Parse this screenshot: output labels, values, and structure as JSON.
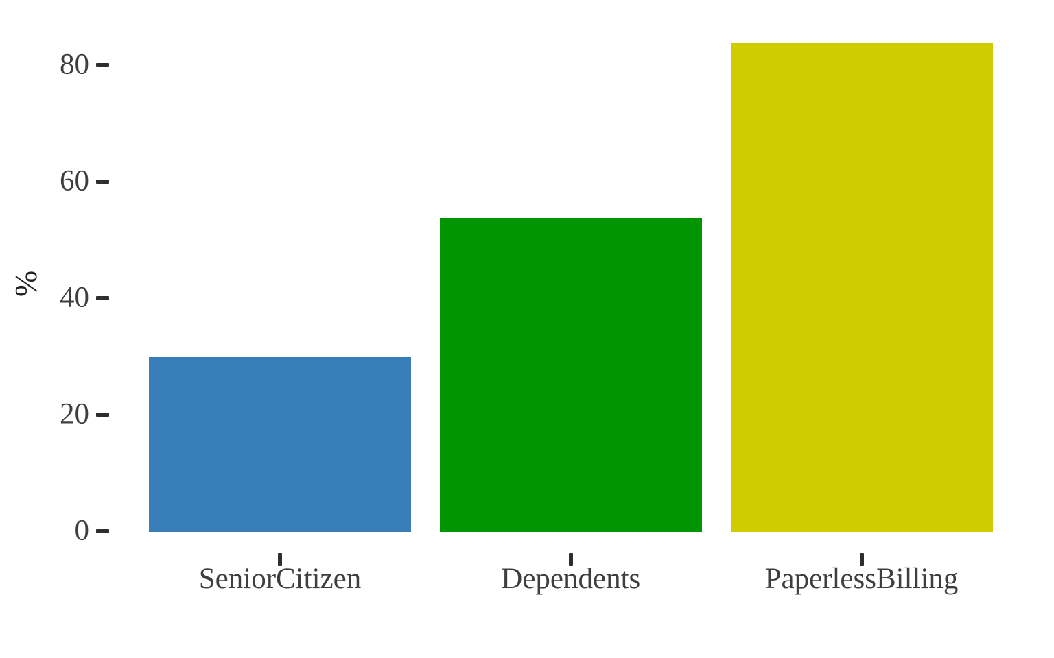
{
  "page": {
    "background": "#FFFFFF"
  },
  "chart_data": {
    "type": "bar",
    "title": "",
    "xlabel": "",
    "ylabel": "%",
    "categories": [
      "SeniorCitizen",
      "Dependents",
      "PaperlessBilling"
    ],
    "values": [
      30,
      54,
      84
    ],
    "bar_colors": [
      "#377EB8",
      "#009400",
      "#CFCC00"
    ],
    "yticks": [
      0,
      20,
      40,
      60,
      80
    ],
    "ylim": [
      0,
      88
    ],
    "grid": false,
    "legend": false,
    "background": "#FFFFFF",
    "text_color": "#3E3E3E",
    "tick_mark_color": "#2E2E2E"
  }
}
